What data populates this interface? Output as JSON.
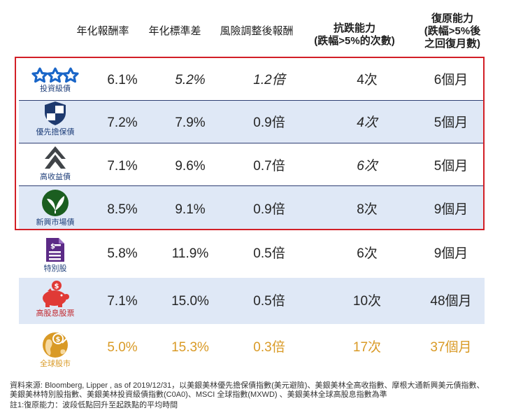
{
  "headers": [
    {
      "key": "return",
      "label": "年化報酬率",
      "bold": false
    },
    {
      "key": "stdev",
      "label": "年化標準差",
      "bold": false
    },
    {
      "key": "risk_adj",
      "label": "風險調整後報酬",
      "bold": false
    },
    {
      "key": "resilience",
      "label": "抗跌能力\n(跌幅>5%的次數)",
      "bold": true
    },
    {
      "key": "recovery",
      "label": "復原能力\n(跌幅>5%後\n之回復月數)",
      "bold": true
    }
  ],
  "rows": [
    {
      "id": "ig",
      "label": "投資級債",
      "icon": "stars-icon",
      "return": "6.1%",
      "stdev": "5.2%",
      "risk_adj": "1.2倍",
      "resilience": "4次",
      "recovery": "6個月",
      "shade": false,
      "italic": [
        "stdev",
        "risk_adj"
      ]
    },
    {
      "id": "senior",
      "label": "優先擔保債",
      "icon": "shield-icon",
      "return": "7.2%",
      "stdev": "7.9%",
      "risk_adj": "0.9倍",
      "resilience": "4次",
      "recovery": "5個月",
      "shade": true,
      "italic": [
        "resilience"
      ]
    },
    {
      "id": "hy",
      "label": "高收益債",
      "icon": "up-arrow-icon",
      "return": "7.1%",
      "stdev": "9.6%",
      "risk_adj": "0.7倍",
      "resilience": "6次",
      "recovery": "5個月",
      "shade": false,
      "italic": [
        "resilience"
      ]
    },
    {
      "id": "em",
      "label": "新興市場債",
      "icon": "leaf-icon",
      "return": "8.5%",
      "stdev": "9.1%",
      "risk_adj": "0.9倍",
      "resilience": "8次",
      "recovery": "9個月",
      "shade": true,
      "italic": []
    },
    {
      "id": "pref",
      "label": "特別股",
      "icon": "document-icon",
      "return": "5.8%",
      "stdev": "11.9%",
      "risk_adj": "0.5倍",
      "resilience": "6次",
      "recovery": "9個月",
      "shade": false,
      "italic": []
    },
    {
      "id": "hdiv",
      "label": "高股息股票",
      "icon": "piggy-bank-icon",
      "return": "7.1%",
      "stdev": "15.0%",
      "risk_adj": "0.5倍",
      "resilience": "10次",
      "recovery": "48個月",
      "shade": true,
      "italic": []
    },
    {
      "id": "global",
      "label": "全球股市",
      "icon": "globe-coin-icon",
      "return": "5.0%",
      "stdev": "15.3%",
      "risk_adj": "0.3倍",
      "resilience": "17次",
      "recovery": "37個月",
      "shade": false,
      "italic": [],
      "gold": true
    }
  ],
  "footnotes": [
    "資料來源: Bloomberg, Lipper , as of 2019/12/31，以美銀美林優先擔保債指數(美元避險)、美銀美林全高收指數、摩根大通新興美元債指數、",
    "美銀美林特別股指數、美銀美林投資級債指數(C0A0)、MSCI 全球指數(MXWD) 、美銀美林全球高股息指數為準",
    "註1:復原能力：波段低點回升至起跌點的平均時間"
  ],
  "colors": {
    "navy": "#1f3a6e",
    "gold": "#d99a26",
    "green": "#1b5e20",
    "purple": "#5b2a86",
    "red": "#e03a36",
    "frame": "#d21f26",
    "shade": "#dfe8f6"
  }
}
